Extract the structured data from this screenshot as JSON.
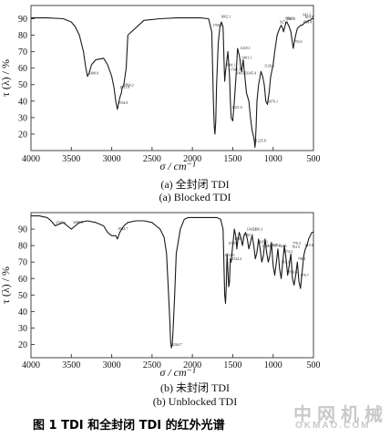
{
  "chart_data": [
    {
      "type": "line",
      "caption_cn": "(a)  全封闭 TDI",
      "caption_en": "(a) Blocked TDI",
      "xlabel": "σ / cm⁻¹",
      "ylabel": "τ (λ) / %",
      "xlim": [
        4000,
        500
      ],
      "ylim": [
        10,
        98
      ],
      "x_ticks": [
        "4000",
        "3500",
        "3000",
        "2500",
        "2000",
        "1500",
        "1000",
        "500"
      ],
      "y_ticks": [
        "20",
        "30",
        "40",
        "50",
        "60",
        "70",
        "80",
        "90"
      ],
      "series": [
        {
          "x": [
            4000,
            3800,
            3600,
            3500,
            3450,
            3400,
            3350,
            3320,
            3300,
            3280,
            3250,
            3200,
            3100,
            3050,
            3000,
            2970,
            2950,
            2930,
            2900,
            2880,
            2870,
            2850,
            2820,
            2800,
            2600,
            2400,
            2200,
            2100,
            2000,
            1900,
            1800,
            1760,
            1740,
            1730,
            1720,
            1710,
            1700,
            1680,
            1660,
            1640,
            1620,
            1605,
            1600,
            1590,
            1560,
            1540,
            1530,
            1520,
            1500,
            1480,
            1460,
            1440,
            1420,
            1410,
            1400,
            1390,
            1380,
            1370,
            1350,
            1330,
            1300,
            1290,
            1280,
            1260,
            1240,
            1230,
            1225,
            1220,
            1210,
            1200,
            1180,
            1150,
            1130,
            1110,
            1100,
            1090,
            1070,
            1050,
            1030,
            1000,
            980,
            950,
            920,
            900,
            880,
            870,
            860,
            840,
            820,
            800,
            780,
            760,
            750,
            740,
            720,
            700,
            680,
            660,
            640,
            620,
            600,
            580,
            560,
            540,
            520,
            500
          ],
          "y": [
            90.5,
            90.5,
            90,
            88,
            85,
            80,
            70,
            60,
            55,
            57,
            62,
            65,
            66,
            62,
            55,
            48,
            40,
            35,
            42,
            45,
            48,
            50,
            60,
            80,
            89,
            90,
            90.5,
            90.5,
            90.5,
            90.5,
            90,
            82,
            40,
            25,
            20,
            28,
            50,
            75,
            85,
            88,
            85,
            60,
            52,
            58,
            70,
            55,
            40,
            30,
            28,
            40,
            55,
            72,
            68,
            65,
            60,
            58,
            62,
            65,
            55,
            45,
            40,
            35,
            30,
            22,
            18,
            15,
            12,
            14,
            25,
            40,
            50,
            58,
            55,
            50,
            45,
            40,
            38,
            45,
            55,
            62,
            70,
            80,
            84,
            86,
            84,
            82,
            84,
            88,
            87,
            85,
            82,
            75,
            72,
            75,
            80,
            84,
            85,
            86,
            86,
            87,
            88,
            88,
            89,
            89,
            90,
            90
          ]
        }
      ],
      "annotations": [
        "3300.0",
        "2934.8",
        "2911.9",
        "2864.2",
        "1760.8",
        "1662.1",
        "1604.1",
        "1543.3",
        "1521.0",
        "1465.6",
        "1418.1",
        "1401.1",
        "1345.4",
        "1225.8",
        "1120.6",
        "1076.1",
        "927.0",
        "856.8",
        "841.8",
        "753.6",
        "642.2",
        "633.4",
        "613.8"
      ]
    },
    {
      "type": "line",
      "caption_cn": "(b)  未封闭 TDI",
      "caption_en": "(b) Unblocked TDI",
      "xlabel": "σ / cm⁻¹",
      "ylabel": "τ (λ) / %",
      "xlim": [
        4000,
        500
      ],
      "ylim": [
        12,
        100
      ],
      "x_ticks": [
        "4000",
        "3500",
        "3000",
        "2500",
        "2000",
        "1500",
        "1000",
        "500"
      ],
      "y_ticks": [
        "20",
        "30",
        "40",
        "50",
        "60",
        "70",
        "80",
        "90"
      ],
      "series": [
        {
          "x": [
            4000,
            3900,
            3800,
            3750,
            3700,
            3650,
            3600,
            3550,
            3500,
            3450,
            3400,
            3300,
            3200,
            3100,
            3050,
            3000,
            2950,
            2930,
            2900,
            2850,
            2800,
            2700,
            2600,
            2500,
            2450,
            2400,
            2350,
            2320,
            2300,
            2280,
            2270,
            2260,
            2250,
            2240,
            2220,
            2200,
            2150,
            2100,
            2050,
            2000,
            1950,
            1900,
            1800,
            1700,
            1650,
            1620,
            1610,
            1600,
            1590,
            1580,
            1570,
            1560,
            1550,
            1540,
            1530,
            1520,
            1510,
            1500,
            1480,
            1460,
            1450,
            1440,
            1420,
            1400,
            1380,
            1360,
            1340,
            1320,
            1300,
            1280,
            1260,
            1240,
            1220,
            1200,
            1180,
            1160,
            1140,
            1120,
            1100,
            1080,
            1060,
            1040,
            1020,
            1000,
            980,
            960,
            940,
            920,
            900,
            880,
            860,
            840,
            820,
            800,
            780,
            760,
            740,
            720,
            700,
            680,
            660,
            640,
            620,
            600,
            580,
            560,
            540,
            520,
            500
          ],
          "y": [
            98,
            98,
            97,
            95,
            92,
            93,
            94,
            92,
            90,
            92,
            94,
            95,
            94,
            92,
            88,
            86,
            86,
            84,
            88,
            92,
            94,
            95,
            95,
            94,
            92,
            90,
            85,
            75,
            55,
            35,
            22,
            18,
            20,
            28,
            50,
            75,
            90,
            96,
            97,
            97,
            97,
            97,
            97,
            97,
            96,
            90,
            70,
            50,
            45,
            55,
            75,
            65,
            55,
            58,
            72,
            70,
            75,
            80,
            90,
            85,
            78,
            82,
            88,
            85,
            80,
            86,
            88,
            84,
            78,
            82,
            86,
            80,
            72,
            76,
            84,
            78,
            70,
            74,
            84,
            76,
            70,
            74,
            82,
            68,
            62,
            70,
            78,
            66,
            60,
            70,
            80,
            72,
            62,
            68,
            75,
            60,
            56,
            62,
            70,
            58,
            54,
            64,
            74,
            78,
            80,
            84,
            86,
            88,
            88
          ]
        }
      ],
      "annotations": [
        "3707.3",
        "3493.5",
        "2934.7",
        "2264.7",
        "1614.0",
        "1570.0",
        "1524.2",
        "1490.7",
        "1382.0",
        "1343.1",
        "1266.3",
        "1205.0",
        "1150.0",
        "1079.5",
        "1045.2",
        "944.5",
        "910.3",
        "874.3",
        "816.6",
        "781.5",
        "770.3",
        "706.1",
        "670.7",
        "615.6"
      ]
    }
  ],
  "figure_title": "图 1    TDI 和全封闭 TDI 的红外光谱",
  "watermark": {
    "cn": "中网机械",
    "en": "OKMAO.COM"
  }
}
